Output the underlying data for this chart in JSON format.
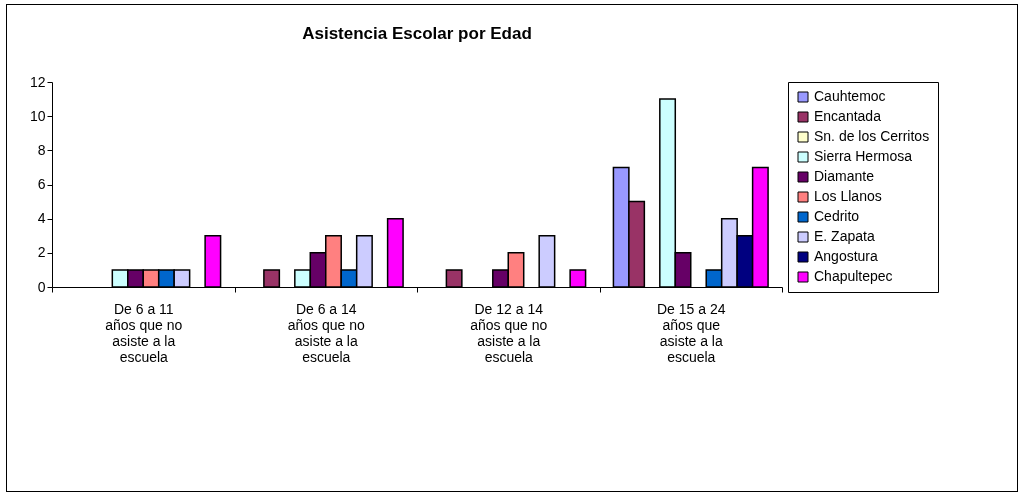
{
  "chart_data": {
    "type": "bar",
    "title": "Asistencia Escolar por Edad",
    "categories": [
      "De 6 a 11 años que no asiste a la escuela",
      "De 6 a 14 años que no asiste a la escuela",
      "De 12 a 14 años que no asiste a la escuela",
      "De 15 a 24 años que asiste a la escuela",
      null
    ],
    "series": [
      {
        "name": "Cauhtemoc",
        "color": "#9999ff",
        "values": [
          0,
          0,
          0,
          7,
          null
        ]
      },
      {
        "name": " Encantada",
        "color": "#993366",
        "values": [
          0,
          1,
          1,
          5,
          null
        ]
      },
      {
        "name": "Sn. de los Cerritos",
        "color": "#ffffcc",
        "values": [
          0,
          0,
          0,
          0,
          null
        ]
      },
      {
        "name": "Sierra Hermosa",
        "color": "#ccffff",
        "values": [
          1,
          1,
          0,
          11,
          null
        ]
      },
      {
        "name": "Diamante",
        "color": "#660066",
        "values": [
          1,
          2,
          1,
          2,
          null
        ]
      },
      {
        "name": "Los Llanos",
        "color": "#ff8080",
        "values": [
          1,
          3,
          2,
          0,
          null
        ]
      },
      {
        "name": " Cedrito",
        "color": "#0066cc",
        "values": [
          1,
          1,
          0,
          1,
          null
        ]
      },
      {
        "name": "E. Zapata",
        "color": "#ccccff",
        "values": [
          1,
          3,
          3,
          4,
          null
        ]
      },
      {
        "name": "Angostura",
        "color": "#000080",
        "values": [
          0,
          0,
          0,
          3,
          null
        ]
      },
      {
        "name": "Chapultepec",
        "color": "#ff00ff",
        "values": [
          3,
          4,
          1,
          7,
          null
        ]
      }
    ],
    "ylim": [
      0,
      12
    ],
    "yticks": [
      0,
      2,
      4,
      6,
      8,
      10,
      12
    ],
    "grid": false,
    "legend": "right"
  }
}
